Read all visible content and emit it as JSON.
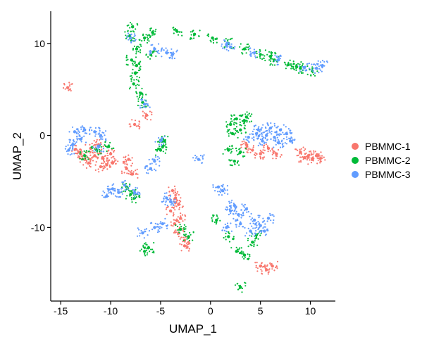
{
  "chart_data": {
    "type": "scatter",
    "title": "",
    "xlabel": "UMAP_1",
    "ylabel": "UMAP_2",
    "xlim": [
      -16,
      12.5
    ],
    "ylim": [
      -18,
      13.5
    ],
    "xticks": [
      -15,
      -10,
      -5,
      0,
      5,
      10
    ],
    "xtick_labels": [
      "-15",
      "-10",
      "-5",
      "0",
      "5",
      "10"
    ],
    "yticks": [
      -10,
      0,
      10
    ],
    "ytick_labels": [
      "-10",
      "0",
      "10"
    ],
    "grid": false,
    "legend_position": "right",
    "series": [
      {
        "name": "PBMMC-1",
        "color": "#F8766D",
        "points": [
          [
            -14.3,
            5.2
          ],
          [
            -13.5,
            -1.5
          ],
          [
            -13.0,
            -2.0
          ],
          [
            -12.6,
            -2.6
          ],
          [
            -12.2,
            -3.0
          ],
          [
            -11.6,
            -2.2
          ],
          [
            -11.2,
            -1.0
          ],
          [
            -10.8,
            -2.4
          ],
          [
            -10.4,
            -3.2
          ],
          [
            -10.0,
            -2.0
          ],
          [
            -9.8,
            -3.0
          ],
          [
            -11.0,
            -3.4
          ],
          [
            -12.0,
            -1.4
          ],
          [
            -8.2,
            -2.6
          ],
          [
            -8.4,
            -3.6
          ],
          [
            -7.8,
            -4.2
          ],
          [
            -3.8,
            -6.0
          ],
          [
            -3.5,
            -6.8
          ],
          [
            -3.2,
            -7.5
          ],
          [
            -4.0,
            -8.2
          ],
          [
            -3.0,
            -9.0
          ],
          [
            -3.6,
            -9.6
          ],
          [
            -3.2,
            -10.6
          ],
          [
            -2.6,
            -11.4
          ],
          [
            -2.6,
            -12.0
          ],
          [
            3.6,
            -1.0
          ],
          [
            4.2,
            -1.6
          ],
          [
            5.0,
            -2.0
          ],
          [
            5.8,
            -1.4
          ],
          [
            6.6,
            -2.0
          ],
          [
            9.0,
            -1.8
          ],
          [
            9.4,
            -2.4
          ],
          [
            9.8,
            -2.2
          ],
          [
            10.2,
            -2.6
          ],
          [
            10.6,
            -2.2
          ],
          [
            11.0,
            -2.5
          ],
          [
            5.0,
            -14.2
          ],
          [
            5.6,
            -14.6
          ],
          [
            6.2,
            -14.2
          ],
          [
            -6.4,
            2.2
          ],
          [
            -7.6,
            1.2
          ]
        ]
      },
      {
        "name": "PBMMC-2",
        "color": "#00BA38",
        "points": [
          [
            -7.8,
            11.8
          ],
          [
            -8.1,
            10.8
          ],
          [
            -7.4,
            9.4
          ],
          [
            -7.9,
            8.2
          ],
          [
            -7.5,
            6.8
          ],
          [
            -7.7,
            5.6
          ],
          [
            -7.0,
            4.6
          ],
          [
            -6.8,
            3.6
          ],
          [
            -7.4,
            7.6
          ],
          [
            -6.6,
            10.6
          ],
          [
            -6.0,
            8.8
          ],
          [
            -5.8,
            11.2
          ],
          [
            -3.4,
            11.4
          ],
          [
            -1.6,
            11.0
          ],
          [
            0.2,
            10.6
          ],
          [
            1.8,
            10.0
          ],
          [
            3.4,
            9.4
          ],
          [
            5.0,
            8.8
          ],
          [
            6.4,
            8.2
          ],
          [
            7.8,
            7.7
          ],
          [
            9.0,
            7.3
          ],
          [
            10.2,
            7.0
          ],
          [
            8.6,
            7.5
          ],
          [
            6.0,
            8.6
          ],
          [
            2.0,
            1.2
          ],
          [
            2.6,
            1.8
          ],
          [
            3.4,
            1.6
          ],
          [
            3.0,
            0.6
          ],
          [
            2.2,
            0.2
          ],
          [
            1.8,
            -1.6
          ],
          [
            2.4,
            -2.8
          ],
          [
            3.0,
            -1.8
          ],
          [
            3.6,
            2.0
          ],
          [
            -4.6,
            -0.6
          ],
          [
            -5.0,
            -1.6
          ],
          [
            -4.8,
            -1.2
          ],
          [
            -12.6,
            -2.2
          ],
          [
            -11.4,
            -1.6
          ],
          [
            -10.2,
            -1.2
          ],
          [
            -8.4,
            -5.6
          ],
          [
            -8.0,
            -6.4
          ],
          [
            -7.6,
            -6.8
          ],
          [
            -6.2,
            -12.2
          ],
          [
            -6.6,
            -12.6
          ],
          [
            0.6,
            -9.2
          ],
          [
            1.8,
            -11.0
          ],
          [
            2.6,
            -12.6
          ],
          [
            3.4,
            -13.0
          ],
          [
            4.2,
            -11.6
          ],
          [
            4.6,
            -10.8
          ],
          [
            -3.0,
            -10.2
          ],
          [
            -2.2,
            -11.0
          ],
          [
            3.0,
            -16.5
          ]
        ]
      },
      {
        "name": "PBMMC-3",
        "color": "#619CFF",
        "points": [
          [
            -13.6,
            0.4
          ],
          [
            -12.6,
            0.6
          ],
          [
            -11.6,
            0.4
          ],
          [
            -11.0,
            0.0
          ],
          [
            -13.8,
            -1.0
          ],
          [
            -14.2,
            -1.6
          ],
          [
            -13.0,
            -0.4
          ],
          [
            -11.2,
            -1.2
          ],
          [
            -9.8,
            -5.8
          ],
          [
            -10.4,
            -6.6
          ],
          [
            -9.2,
            -6.2
          ],
          [
            -8.6,
            -5.4
          ],
          [
            -7.6,
            -6.2
          ],
          [
            -3.8,
            8.8
          ],
          [
            -4.4,
            9.0
          ],
          [
            -5.6,
            9.4
          ],
          [
            -6.6,
            3.4
          ],
          [
            -8.0,
            10.6
          ],
          [
            2.0,
            9.6
          ],
          [
            4.4,
            9.0
          ],
          [
            6.8,
            8.2
          ],
          [
            9.4,
            7.4
          ],
          [
            10.6,
            7.3
          ],
          [
            11.2,
            7.6
          ],
          [
            1.6,
            9.9
          ],
          [
            4.6,
            0.2
          ],
          [
            5.6,
            0.0
          ],
          [
            6.4,
            -0.2
          ],
          [
            7.0,
            0.6
          ],
          [
            7.6,
            0.2
          ],
          [
            6.0,
            0.8
          ],
          [
            5.2,
            -0.6
          ],
          [
            6.8,
            -0.8
          ],
          [
            4.8,
            0.6
          ],
          [
            3.8,
            -0.2
          ],
          [
            8.0,
            -0.6
          ],
          [
            2.0,
            -8.2
          ],
          [
            2.8,
            -8.6
          ],
          [
            3.6,
            -8.0
          ],
          [
            4.4,
            -9.2
          ],
          [
            5.0,
            -9.8
          ],
          [
            5.4,
            -10.4
          ],
          [
            3.0,
            -9.6
          ],
          [
            1.6,
            -10.0
          ],
          [
            2.4,
            -7.6
          ],
          [
            4.0,
            -10.4
          ],
          [
            5.8,
            -9.0
          ],
          [
            -5.0,
            -0.6
          ],
          [
            -5.6,
            -2.8
          ],
          [
            -6.0,
            -3.6
          ],
          [
            -6.8,
            -10.6
          ],
          [
            -5.6,
            -10.0
          ],
          [
            -4.8,
            -9.6
          ],
          [
            -4.4,
            -6.8
          ],
          [
            -4.0,
            -7.2
          ],
          [
            -1.2,
            -2.6
          ],
          [
            0.8,
            -5.6
          ],
          [
            1.2,
            -6.0
          ]
        ]
      }
    ]
  }
}
